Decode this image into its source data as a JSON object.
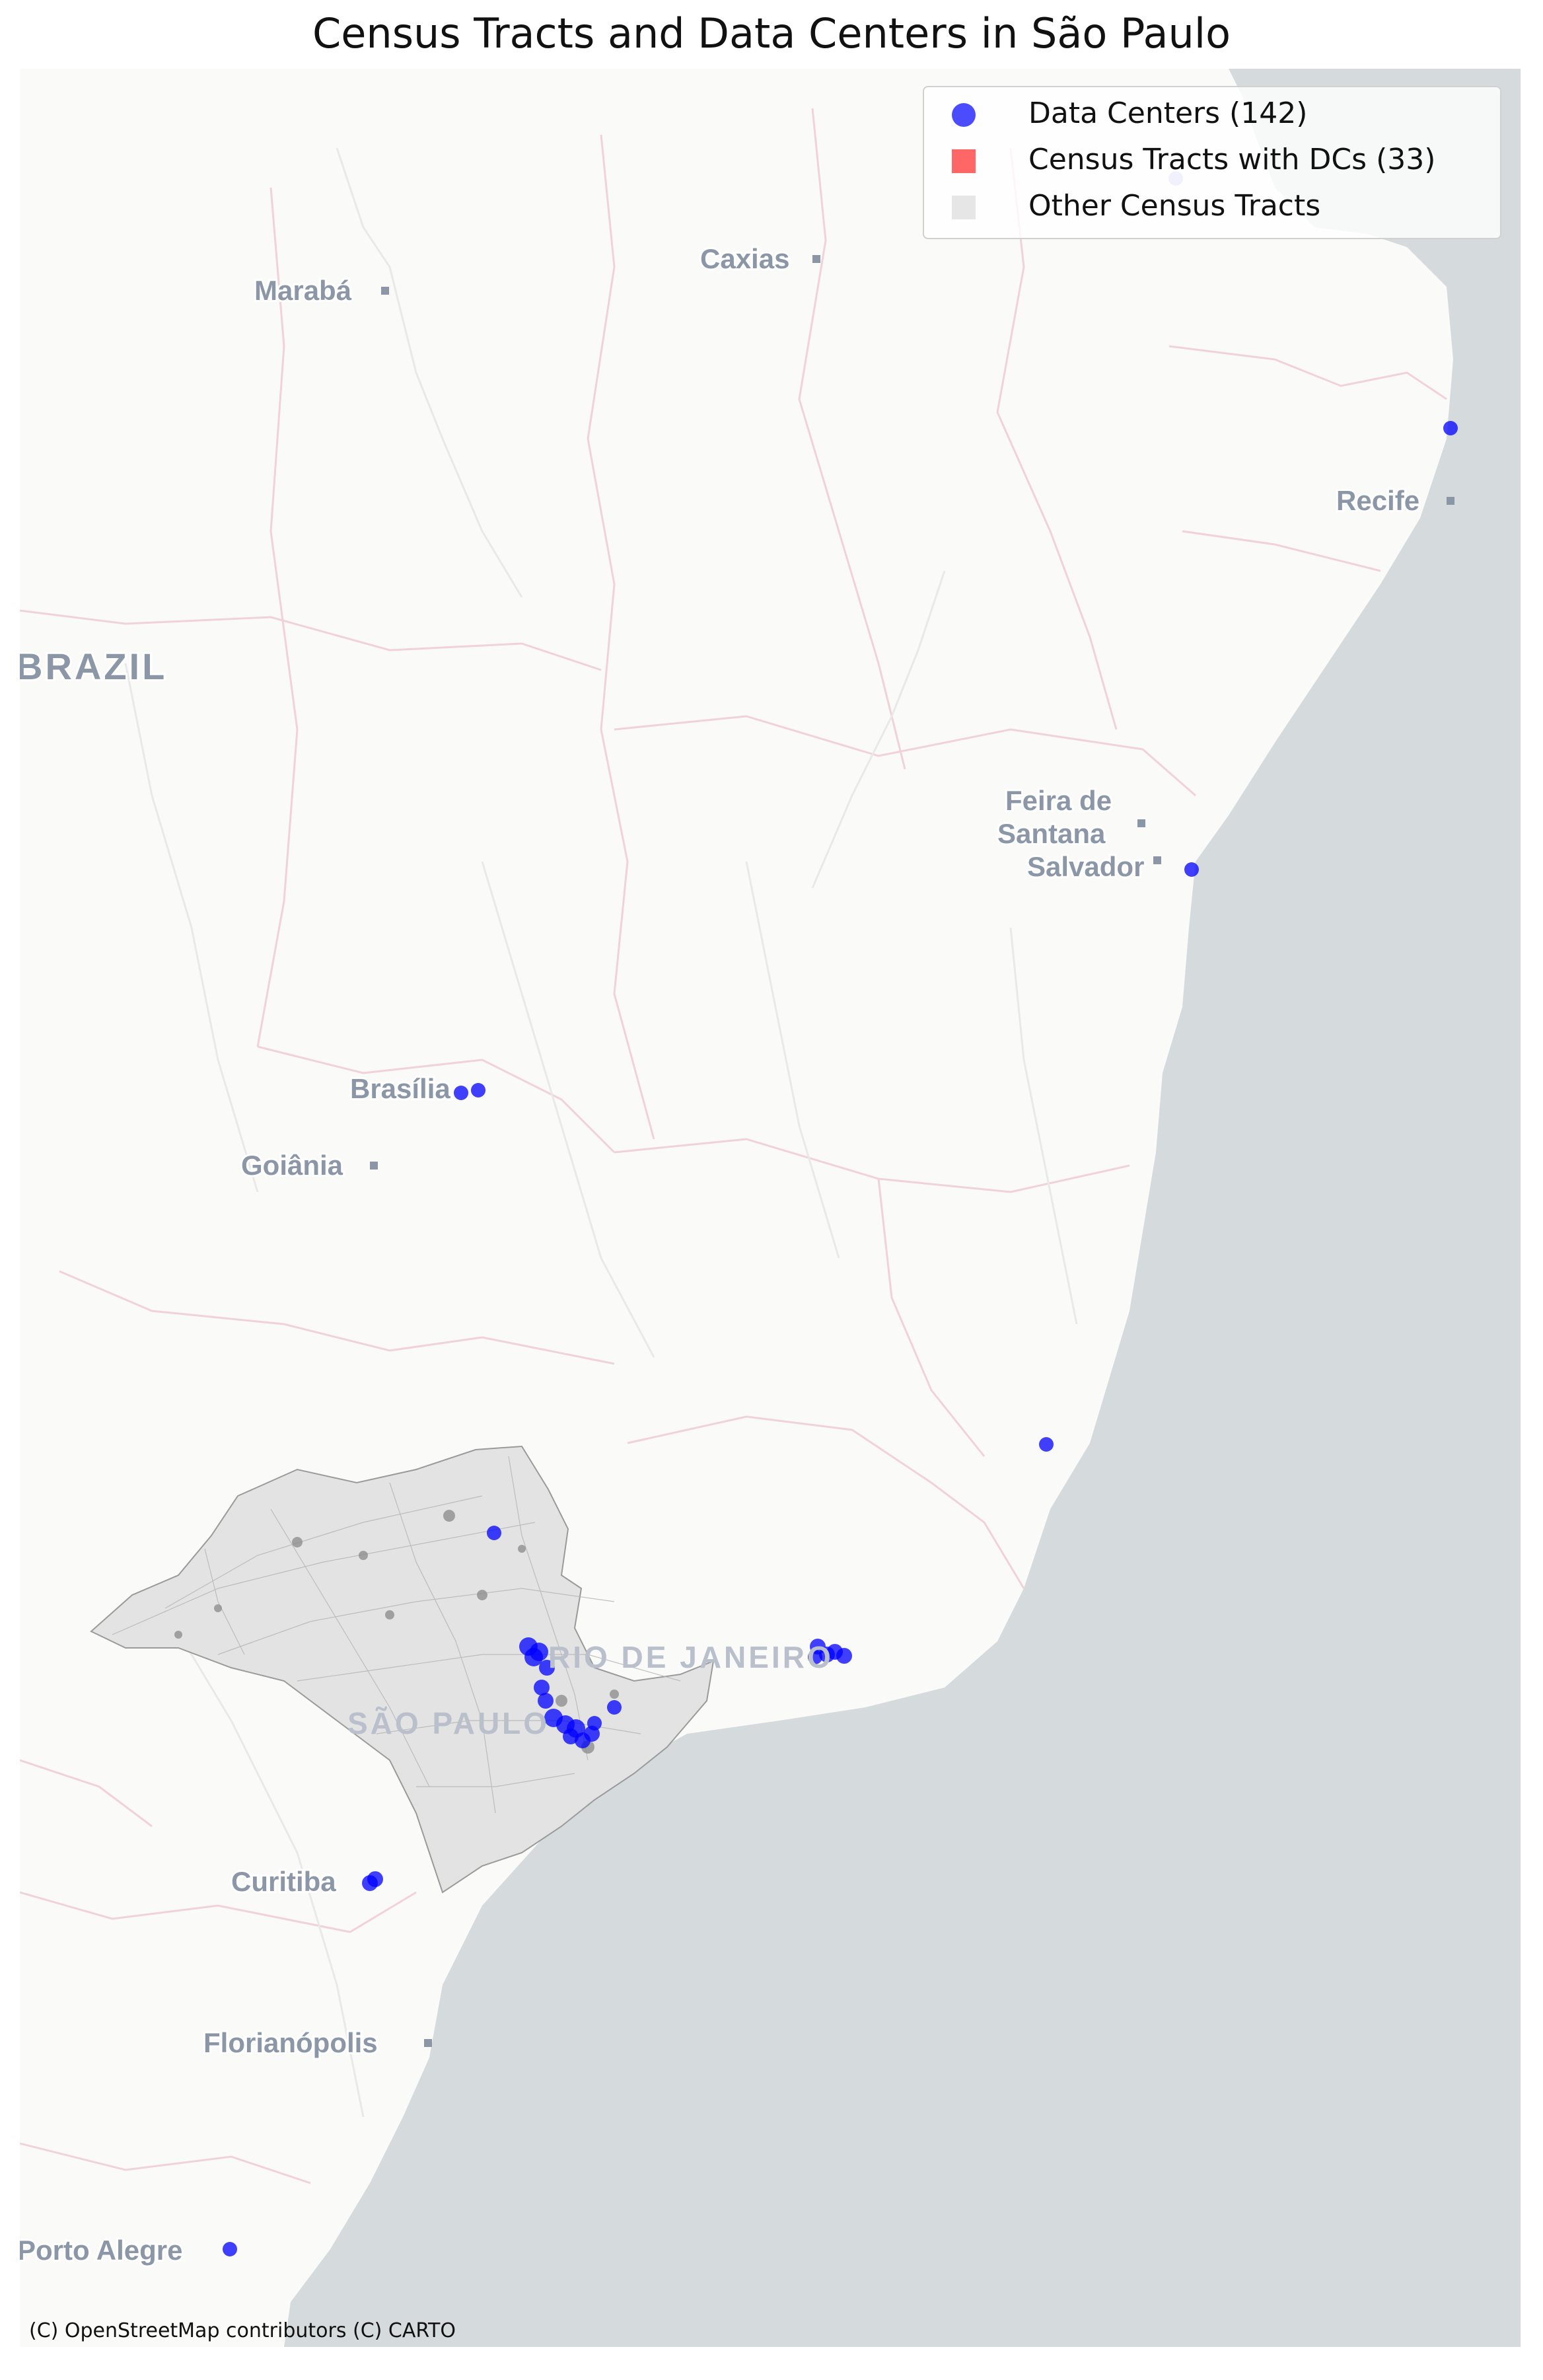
{
  "title": "Census Tracts and Data Centers in São Paulo",
  "legend": {
    "items": [
      {
        "label": "Data Centers (142)",
        "color": "#0000ff",
        "shape": "circle"
      },
      {
        "label": "Census Tracts with DCs (33)",
        "color": "#ff5a5a",
        "shape": "square"
      },
      {
        "label": "Other Census Tracts",
        "color": "#e5e5e5",
        "shape": "square"
      }
    ]
  },
  "basemap": {
    "land_color": "#fafaf8",
    "ocean_color": "#d5dadc",
    "border_color": "#f2d9dd",
    "tract_fill": "#e6e6e6"
  },
  "map_labels": {
    "country": "BRAZIL",
    "cities": [
      {
        "name": "Marabá"
      },
      {
        "name": "Caxias"
      },
      {
        "name": "Recife"
      },
      {
        "name": "Feira de"
      },
      {
        "name": "Santana"
      },
      {
        "name": "Salvador"
      },
      {
        "name": "Brasília"
      },
      {
        "name": "Goiânia"
      },
      {
        "name": "Curitiba"
      },
      {
        "name": "Florianópolis"
      },
      {
        "name": "Porto Alegre"
      }
    ],
    "regions": [
      {
        "name": "SÃO PAULO"
      },
      {
        "name": "RIO DE JANEIRO"
      }
    ]
  },
  "attribution": "(C) OpenStreetMap contributors (C) CARTO"
}
